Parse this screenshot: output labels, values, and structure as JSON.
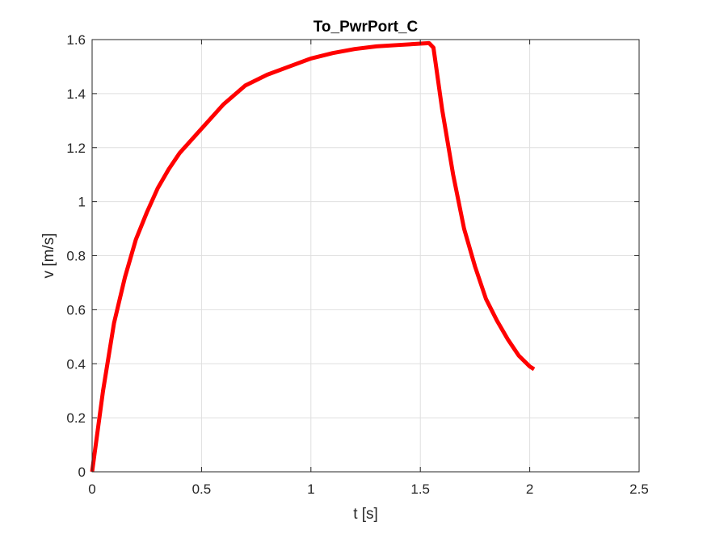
{
  "chart_data": {
    "type": "line",
    "title": "To_PwrPort_C",
    "xlabel": "t [s]",
    "ylabel": "v [m/s]",
    "xlim": [
      0,
      2.5
    ],
    "ylim": [
      0,
      1.6
    ],
    "xticks": [
      0,
      0.5,
      1,
      1.5,
      2,
      2.5
    ],
    "xtick_labels": [
      "0",
      "0.5",
      "1",
      "1.5",
      "2",
      "2.5"
    ],
    "yticks": [
      0,
      0.2,
      0.4,
      0.6,
      0.8,
      1,
      1.2,
      1.4,
      1.6
    ],
    "ytick_labels": [
      "0",
      "0.2",
      "0.4",
      "0.6",
      "0.8",
      "1",
      "1.2",
      "1.4",
      "1.6"
    ],
    "grid": true,
    "box": true,
    "series": [
      {
        "color": "#ff0000",
        "x": [
          0,
          0.05,
          0.1,
          0.15,
          0.2,
          0.25,
          0.3,
          0.35,
          0.4,
          0.5,
          0.6,
          0.7,
          0.8,
          0.9,
          1.0,
          1.1,
          1.2,
          1.3,
          1.4,
          1.5,
          1.54,
          1.56,
          1.6,
          1.65,
          1.7,
          1.75,
          1.8,
          1.85,
          1.9,
          1.95,
          2.0,
          2.02
        ],
        "y": [
          0,
          0.3,
          0.55,
          0.72,
          0.86,
          0.96,
          1.05,
          1.12,
          1.18,
          1.27,
          1.36,
          1.43,
          1.47,
          1.5,
          1.53,
          1.55,
          1.565,
          1.575,
          1.58,
          1.585,
          1.587,
          1.57,
          1.34,
          1.1,
          0.9,
          0.76,
          0.64,
          0.56,
          0.49,
          0.43,
          0.39,
          0.38
        ]
      }
    ]
  }
}
